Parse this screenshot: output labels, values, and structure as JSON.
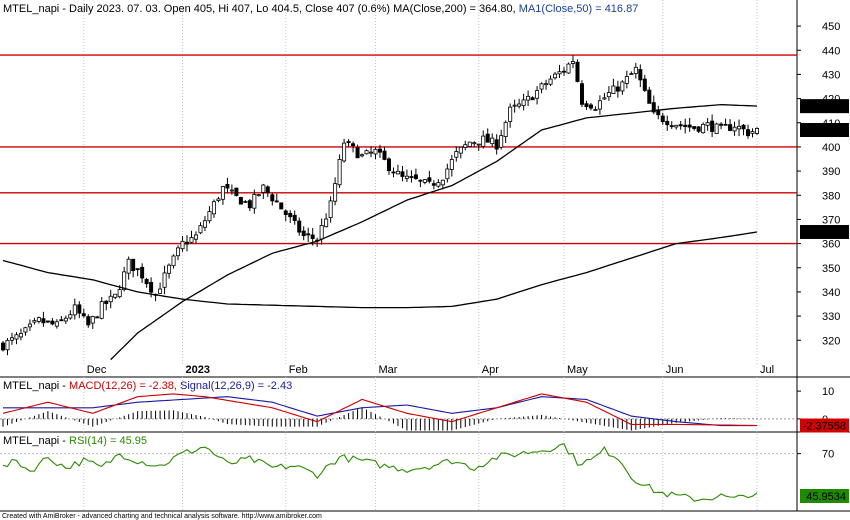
{
  "title": {
    "main": "MTEL_napi - Daily 2023. 07. 03. Open 405, Hi 407, Lo 404.5, Close 407 (0.6%) MA(Close,200) = 364.80,",
    "ma_part": "MA1(Close,50) = 416.87"
  },
  "macd_title": {
    "prefix": "MTEL_napi - ",
    "macd": "MACD(12,26) = -2.38,",
    "signal": "Signal(12,26,9) = -2.43"
  },
  "rsi_title": {
    "prefix": "MTEL_napi - ",
    "rsi": "RSI(14) = 45.95"
  },
  "footer": "Created with AmiBroker - advanced charting and technical analysis software. http://www.amibroker.com",
  "colors": {
    "hline": "#d00000",
    "ma": "#000000",
    "macd": "#d00000",
    "signal": "#1a1aa0",
    "rsi": "#2a8a00",
    "candle": "#000000",
    "grid": "#c8c8c8"
  },
  "chart_data": [
    {
      "type": "candlestick",
      "ylim": [
        311,
        455
      ],
      "yticks": [
        320,
        330,
        340,
        350,
        360,
        370,
        380,
        390,
        400,
        410,
        420,
        430,
        440,
        450
      ],
      "x_labels": [
        {
          "label": "Dec",
          "i": 18
        },
        {
          "label": "2023",
          "i": 40
        },
        {
          "label": "Feb",
          "i": 63
        },
        {
          "label": "Mar",
          "i": 83
        },
        {
          "label": "Apr",
          "i": 106
        },
        {
          "label": "May",
          "i": 125
        },
        {
          "label": "Jun",
          "i": 147
        },
        {
          "label": "Jul",
          "i": 168
        }
      ],
      "horizontal_levels": [
        360,
        381,
        400,
        438
      ],
      "price_tags": [
        {
          "label": "416.87",
          "value": 416.87,
          "style": "dark"
        },
        {
          "label": "407",
          "value": 407,
          "style": "dark"
        },
        {
          "label": "364.797",
          "value": 364.8,
          "style": "dark"
        }
      ],
      "ohlc_anchors": [
        [
          0,
          318
        ],
        [
          4,
          322
        ],
        [
          8,
          328
        ],
        [
          12,
          326
        ],
        [
          16,
          333
        ],
        [
          19,
          326
        ],
        [
          22,
          334
        ],
        [
          25,
          338
        ],
        [
          28,
          352
        ],
        [
          31,
          347
        ],
        [
          34,
          339
        ],
        [
          37,
          350
        ],
        [
          40,
          360
        ],
        [
          43,
          363
        ],
        [
          46,
          373
        ],
        [
          49,
          383
        ],
        [
          52,
          379
        ],
        [
          55,
          376
        ],
        [
          58,
          383
        ],
        [
          61,
          377
        ],
        [
          64,
          370
        ],
        [
          67,
          363
        ],
        [
          70,
          362
        ],
        [
          73,
          376
        ],
        [
          76,
          402
        ],
        [
          80,
          396
        ],
        [
          83,
          398
        ],
        [
          86,
          392
        ],
        [
          89,
          387
        ],
        [
          92,
          386
        ],
        [
          95,
          384
        ],
        [
          98,
          388
        ],
        [
          101,
          397
        ],
        [
          104,
          402
        ],
        [
          107,
          403
        ],
        [
          110,
          401
        ],
        [
          113,
          415
        ],
        [
          116,
          418
        ],
        [
          119,
          423
        ],
        [
          122,
          428
        ],
        [
          125,
          432
        ],
        [
          127,
          436
        ],
        [
          129,
          419
        ],
        [
          132,
          417
        ],
        [
          135,
          422
        ],
        [
          138,
          426
        ],
        [
          141,
          432
        ],
        [
          143,
          422
        ],
        [
          145,
          413
        ],
        [
          148,
          411
        ],
        [
          151,
          409
        ],
        [
          154,
          408
        ],
        [
          157,
          409
        ],
        [
          160,
          407
        ],
        [
          163,
          409
        ],
        [
          166,
          406
        ],
        [
          168,
          407
        ]
      ],
      "ma200_anchors": [
        [
          0,
          353
        ],
        [
          10,
          348
        ],
        [
          20,
          345
        ],
        [
          30,
          340
        ],
        [
          40,
          337
        ],
        [
          50,
          335
        ],
        [
          60,
          334.5
        ],
        [
          70,
          334
        ],
        [
          80,
          333.5
        ],
        [
          90,
          333.5
        ],
        [
          100,
          334
        ],
        [
          110,
          337
        ],
        [
          120,
          343
        ],
        [
          130,
          348
        ],
        [
          140,
          354
        ],
        [
          150,
          360
        ],
        [
          160,
          362.5
        ],
        [
          168,
          364.8
        ]
      ],
      "ma50_anchors": [
        [
          24,
          312
        ],
        [
          30,
          323
        ],
        [
          40,
          336
        ],
        [
          50,
          347
        ],
        [
          60,
          356
        ],
        [
          70,
          361
        ],
        [
          80,
          369
        ],
        [
          90,
          378
        ],
        [
          100,
          384
        ],
        [
          110,
          394
        ],
        [
          120,
          407
        ],
        [
          130,
          412
        ],
        [
          140,
          414
        ],
        [
          150,
          416
        ],
        [
          160,
          417.5
        ],
        [
          168,
          416.9
        ]
      ]
    },
    {
      "type": "macd",
      "ylim": [
        -4,
        14
      ],
      "yticks": [
        0,
        10
      ],
      "price_tags": [
        {
          "label": "-2.37558",
          "value": -2.38,
          "style": "red"
        }
      ],
      "macd_anchors": [
        [
          0,
          2
        ],
        [
          10,
          6
        ],
        [
          20,
          2
        ],
        [
          30,
          8
        ],
        [
          38,
          9
        ],
        [
          45,
          8
        ],
        [
          60,
          4
        ],
        [
          70,
          -1
        ],
        [
          80,
          7
        ],
        [
          90,
          2
        ],
        [
          100,
          -1
        ],
        [
          110,
          4
        ],
        [
          120,
          9
        ],
        [
          130,
          6
        ],
        [
          140,
          -2
        ],
        [
          150,
          -2
        ],
        [
          160,
          -2.2
        ],
        [
          168,
          -2.38
        ]
      ],
      "signal_anchors": [
        [
          0,
          4
        ],
        [
          10,
          4
        ],
        [
          20,
          4
        ],
        [
          30,
          6
        ],
        [
          40,
          7
        ],
        [
          50,
          8
        ],
        [
          60,
          6
        ],
        [
          70,
          1
        ],
        [
          80,
          4
        ],
        [
          90,
          5
        ],
        [
          100,
          2
        ],
        [
          110,
          4
        ],
        [
          120,
          8
        ],
        [
          130,
          7
        ],
        [
          140,
          1
        ],
        [
          150,
          -1
        ],
        [
          160,
          -2.4
        ],
        [
          168,
          -2.43
        ]
      ]
    },
    {
      "type": "rsi",
      "ylim": [
        38,
        80
      ],
      "yticks": [
        70
      ],
      "price_tags": [
        {
          "label": "45.9534",
          "value": 45.95,
          "style": "green"
        }
      ],
      "rsi_anchors": [
        [
          0,
          62
        ],
        [
          3,
          66
        ],
        [
          6,
          60
        ],
        [
          10,
          68
        ],
        [
          14,
          62
        ],
        [
          18,
          66
        ],
        [
          22,
          62
        ],
        [
          26,
          70
        ],
        [
          30,
          66
        ],
        [
          35,
          63
        ],
        [
          40,
          70
        ],
        [
          45,
          74
        ],
        [
          50,
          64
        ],
        [
          55,
          67
        ],
        [
          60,
          62
        ],
        [
          65,
          63
        ],
        [
          70,
          58
        ],
        [
          75,
          68
        ],
        [
          80,
          66
        ],
        [
          85,
          63
        ],
        [
          90,
          61
        ],
        [
          95,
          63
        ],
        [
          100,
          66
        ],
        [
          105,
          62
        ],
        [
          110,
          68
        ],
        [
          115,
          70
        ],
        [
          120,
          72
        ],
        [
          125,
          75
        ],
        [
          128,
          65
        ],
        [
          131,
          66
        ],
        [
          134,
          72
        ],
        [
          137,
          68
        ],
        [
          140,
          57
        ],
        [
          143,
          52
        ],
        [
          146,
          48
        ],
        [
          150,
          46
        ],
        [
          155,
          44
        ],
        [
          160,
          46
        ],
        [
          163,
          44
        ],
        [
          166,
          47
        ],
        [
          168,
          45.95
        ]
      ]
    }
  ]
}
